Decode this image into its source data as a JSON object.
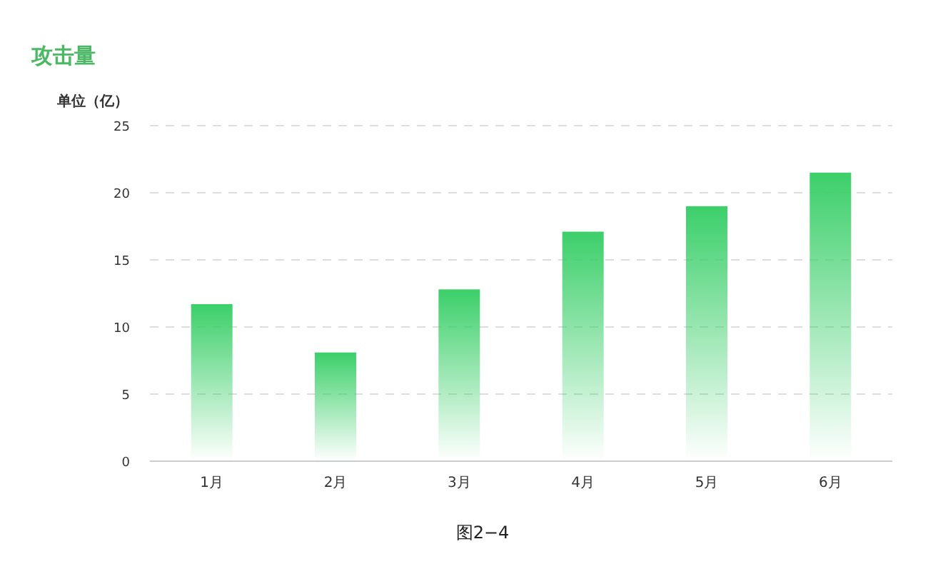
{
  "chart_data": {
    "type": "bar",
    "title": "攻击量",
    "ylabel": "单位（亿）",
    "categories": [
      "1月",
      "2月",
      "3月",
      "4月",
      "5月",
      "6月"
    ],
    "values": [
      11.7,
      8.1,
      12.8,
      17.1,
      19.0,
      21.5
    ],
    "color": "#3ccf6a",
    "ylim": [
      0,
      25
    ],
    "yticks": [
      0,
      5,
      10,
      15,
      20,
      25
    ],
    "grid": "y",
    "annotations": [
      "图2−4"
    ]
  }
}
